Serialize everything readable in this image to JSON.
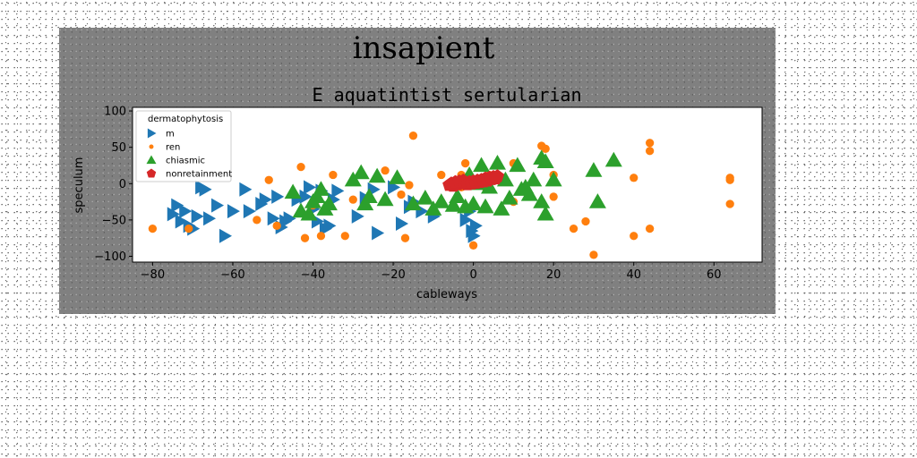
{
  "chart_data": {
    "type": "scatter",
    "suptitle": "insapient",
    "title": "E aquatintist sertularian",
    "xlabel": "cableways",
    "ylabel": "speculum",
    "xlim": [
      -85,
      72
    ],
    "ylim": [
      -108,
      105
    ],
    "xticks": [
      -80,
      -60,
      -40,
      -20,
      0,
      20,
      40,
      60
    ],
    "yticks": [
      -100,
      -50,
      0,
      50,
      100
    ],
    "grid": false,
    "legend": {
      "title": "dermatophytosis",
      "position": "upper-left"
    },
    "series": [
      {
        "name": "m",
        "marker": "triangle-right",
        "color": "#1f77b4",
        "points": [
          [
            -75,
            -42
          ],
          [
            -74,
            -30
          ],
          [
            -73,
            -52
          ],
          [
            -72,
            -38
          ],
          [
            -71,
            -58
          ],
          [
            -70,
            -62
          ],
          [
            -69,
            -45
          ],
          [
            -68,
            -5
          ],
          [
            -67,
            -8
          ],
          [
            -66,
            -48
          ],
          [
            -64,
            -30
          ],
          [
            -62,
            -72
          ],
          [
            -60,
            -38
          ],
          [
            -57,
            -8
          ],
          [
            -56,
            -38
          ],
          [
            -53,
            -28
          ],
          [
            -52,
            -22
          ],
          [
            -50,
            -48
          ],
          [
            -49,
            -18
          ],
          [
            -48,
            -60
          ],
          [
            -47,
            -52
          ],
          [
            -46,
            -48
          ],
          [
            -44,
            -22
          ],
          [
            -42,
            -18
          ],
          [
            -41,
            -5
          ],
          [
            -40,
            -35
          ],
          [
            -39,
            -52
          ],
          [
            -38,
            -10
          ],
          [
            -37,
            -62
          ],
          [
            -36,
            -58
          ],
          [
            -35,
            -22
          ],
          [
            -34,
            -10
          ],
          [
            -29,
            -45
          ],
          [
            -27,
            -20
          ],
          [
            -25,
            -8
          ],
          [
            -24,
            -68
          ],
          [
            -20,
            -5
          ],
          [
            -18,
            -55
          ],
          [
            -16,
            -32
          ],
          [
            -15,
            -25
          ],
          [
            -13,
            -38
          ],
          [
            -10,
            -45
          ],
          [
            -2,
            -50
          ],
          [
            -1,
            -38
          ],
          [
            -0.5,
            -65
          ],
          [
            0,
            -72
          ],
          [
            0.5,
            -58
          ]
        ]
      },
      {
        "name": "ren",
        "marker": "circle",
        "color": "#ff7f0e",
        "points": [
          [
            -80,
            -62
          ],
          [
            -71,
            -62
          ],
          [
            -54,
            -50
          ],
          [
            -51,
            5
          ],
          [
            -49,
            -58
          ],
          [
            -43,
            23
          ],
          [
            -42,
            -75
          ],
          [
            -40,
            -30
          ],
          [
            -39,
            -22
          ],
          [
            -38,
            -72
          ],
          [
            -35,
            12
          ],
          [
            -32,
            -72
          ],
          [
            -30,
            -22
          ],
          [
            -22,
            18
          ],
          [
            -18,
            -15
          ],
          [
            -17,
            -75
          ],
          [
            -16,
            -2
          ],
          [
            -15,
            66
          ],
          [
            -8,
            12
          ],
          [
            -3,
            12
          ],
          [
            -3,
            -5
          ],
          [
            -2,
            28
          ],
          [
            0,
            -85
          ],
          [
            3,
            -5
          ],
          [
            4,
            12
          ],
          [
            10,
            -25
          ],
          [
            10,
            28
          ],
          [
            17,
            52
          ],
          [
            18,
            48
          ],
          [
            20,
            -18
          ],
          [
            20,
            12
          ],
          [
            25,
            -62
          ],
          [
            28,
            -52
          ],
          [
            30,
            -98
          ],
          [
            40,
            8
          ],
          [
            40,
            -72
          ],
          [
            44,
            -62
          ],
          [
            44,
            56
          ],
          [
            44,
            45
          ],
          [
            64,
            -28
          ],
          [
            64,
            5
          ],
          [
            64,
            8
          ]
        ]
      },
      {
        "name": "chiasmic",
        "marker": "triangle-up",
        "color": "#2ca02c",
        "points": [
          [
            -45,
            -12
          ],
          [
            -43,
            -38
          ],
          [
            -41,
            -42
          ],
          [
            -40,
            -25
          ],
          [
            -39,
            -18
          ],
          [
            -38,
            -8
          ],
          [
            -37,
            -35
          ],
          [
            -36,
            -28
          ],
          [
            -30,
            5
          ],
          [
            -28,
            15
          ],
          [
            -27,
            -28
          ],
          [
            -26,
            -18
          ],
          [
            -24,
            10
          ],
          [
            -22,
            -22
          ],
          [
            -19,
            8
          ],
          [
            -15,
            -28
          ],
          [
            -12,
            -20
          ],
          [
            -10,
            -35
          ],
          [
            -8,
            -25
          ],
          [
            -5,
            -30
          ],
          [
            -4,
            -18
          ],
          [
            -2,
            -32
          ],
          [
            -1,
            12
          ],
          [
            0,
            -28
          ],
          [
            1,
            0
          ],
          [
            2,
            25
          ],
          [
            3,
            -32
          ],
          [
            4,
            -5
          ],
          [
            6,
            28
          ],
          [
            7,
            -35
          ],
          [
            8,
            5
          ],
          [
            9,
            -20
          ],
          [
            11,
            25
          ],
          [
            12,
            -8
          ],
          [
            13,
            -5
          ],
          [
            14,
            -15
          ],
          [
            15,
            5
          ],
          [
            17,
            35
          ],
          [
            17,
            -25
          ],
          [
            18,
            30
          ],
          [
            18,
            -42
          ],
          [
            20,
            5
          ],
          [
            30,
            18
          ],
          [
            31,
            -25
          ],
          [
            35,
            32
          ]
        ]
      },
      {
        "name": "nonretainment",
        "marker": "pentagon",
        "color": "#d62728",
        "points": [
          [
            -6,
            -2
          ],
          [
            -5,
            -3
          ],
          [
            -4,
            -1
          ],
          [
            -3,
            0
          ],
          [
            -2,
            1
          ],
          [
            -1,
            2
          ],
          [
            0,
            3
          ],
          [
            1,
            4
          ],
          [
            2,
            5
          ],
          [
            3,
            7
          ],
          [
            4,
            8
          ],
          [
            5,
            9
          ],
          [
            6,
            10
          ],
          [
            -5.5,
            0
          ],
          [
            -4.5,
            2
          ],
          [
            -3.5,
            3
          ],
          [
            -2.5,
            4
          ],
          [
            -1.5,
            -1
          ],
          [
            -0.5,
            0
          ],
          [
            0.5,
            1
          ],
          [
            1.5,
            2
          ],
          [
            2.5,
            3
          ],
          [
            3.5,
            4
          ],
          [
            4.5,
            6
          ],
          [
            5.5,
            7
          ]
        ]
      }
    ]
  }
}
